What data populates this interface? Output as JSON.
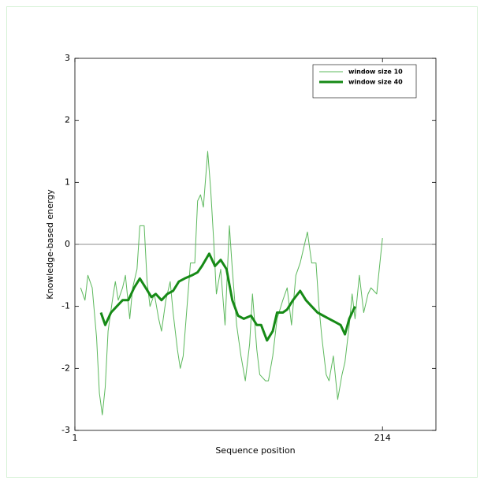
{
  "chart_data": {
    "type": "line",
    "xlabel": "Sequence position",
    "ylabel": "Knowledge-based energy",
    "xlim": [
      1,
      251
    ],
    "xticks": [
      1,
      214
    ],
    "ylim": [
      -3,
      3
    ],
    "yticks": [
      -3,
      -2,
      -1,
      0,
      1,
      2,
      3
    ],
    "hline": 0,
    "legend": "upper right",
    "series": [
      {
        "name": "window size 10",
        "color": "#5cb85c",
        "width": 1,
        "x": [
          5,
          8,
          10,
          13,
          16,
          18,
          20,
          22,
          24,
          27,
          29,
          31,
          34,
          36,
          39,
          41,
          44,
          46,
          49,
          51,
          53,
          56,
          59,
          61,
          64,
          67,
          69,
          72,
          74,
          76,
          79,
          81,
          84,
          86,
          88,
          90,
          93,
          95,
          97,
          99,
          102,
          105,
          108,
          110,
          113,
          116,
          119,
          122,
          124,
          127,
          129,
          133,
          135,
          138,
          141,
          145,
          148,
          151,
          154,
          157,
          160,
          162,
          165,
          168,
          170,
          172,
          175,
          177,
          180,
          183,
          186,
          188,
          191,
          193,
          195,
          198,
          201,
          204,
          206,
          210,
          214
        ],
        "values": [
          -0.7,
          -0.9,
          -0.5,
          -0.7,
          -1.5,
          -2.4,
          -2.75,
          -2.3,
          -1.4,
          -0.9,
          -0.6,
          -0.9,
          -0.7,
          -0.5,
          -1.2,
          -0.7,
          -0.4,
          0.3,
          0.3,
          -0.6,
          -1.0,
          -0.8,
          -1.2,
          -1.4,
          -0.9,
          -0.6,
          -1.1,
          -1.7,
          -2.0,
          -1.8,
          -0.9,
          -0.3,
          -0.3,
          0.7,
          0.8,
          0.6,
          1.5,
          0.9,
          0.1,
          -0.8,
          -0.4,
          -1.3,
          0.3,
          -0.4,
          -1.3,
          -1.8,
          -2.2,
          -1.6,
          -0.8,
          -1.7,
          -2.1,
          -2.2,
          -2.2,
          -1.8,
          -1.2,
          -0.9,
          -0.7,
          -1.3,
          -0.5,
          -0.3,
          0.0,
          0.2,
          -0.3,
          -0.3,
          -1.0,
          -1.5,
          -2.1,
          -2.2,
          -1.8,
          -2.5,
          -2.1,
          -1.9,
          -1.3,
          -0.8,
          -1.2,
          -0.5,
          -1.1,
          -0.8,
          -0.7,
          -0.8,
          0.1
        ]
      },
      {
        "name": "window size 40",
        "color": "#168a16",
        "width": 3,
        "x": [
          19,
          22,
          26,
          30,
          34,
          38,
          42,
          46,
          50,
          54,
          57,
          61,
          65,
          69,
          73,
          77,
          82,
          86,
          89,
          94,
          98,
          102,
          106,
          110,
          114,
          118,
          123,
          127,
          130,
          134,
          138,
          141,
          145,
          148,
          152,
          157,
          161,
          165,
          169,
          173,
          177,
          181,
          185,
          188,
          191,
          195
        ],
        "values": [
          -1.1,
          -1.3,
          -1.1,
          -1.0,
          -0.9,
          -0.9,
          -0.7,
          -0.55,
          -0.7,
          -0.85,
          -0.8,
          -0.9,
          -0.8,
          -0.75,
          -0.6,
          -0.55,
          -0.5,
          -0.45,
          -0.35,
          -0.15,
          -0.35,
          -0.25,
          -0.4,
          -0.9,
          -1.15,
          -1.2,
          -1.15,
          -1.3,
          -1.3,
          -1.55,
          -1.4,
          -1.1,
          -1.1,
          -1.05,
          -0.9,
          -0.75,
          -0.9,
          -1.0,
          -1.1,
          -1.15,
          -1.2,
          -1.25,
          -1.3,
          -1.45,
          -1.2,
          -1.0
        ]
      }
    ]
  }
}
